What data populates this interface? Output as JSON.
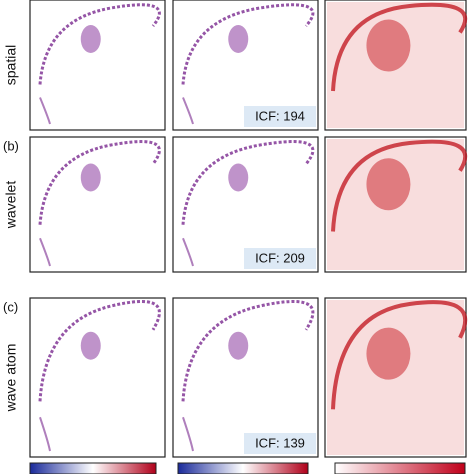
{
  "rows": [
    {
      "name": "spatial",
      "icf": "ICF: 194"
    },
    {
      "letter": "(b)",
      "name": "wavelet",
      "icf": "ICF: 209"
    },
    {
      "letter": "(c)",
      "name": "wave atom",
      "icf": "ICF: 139"
    }
  ]
}
